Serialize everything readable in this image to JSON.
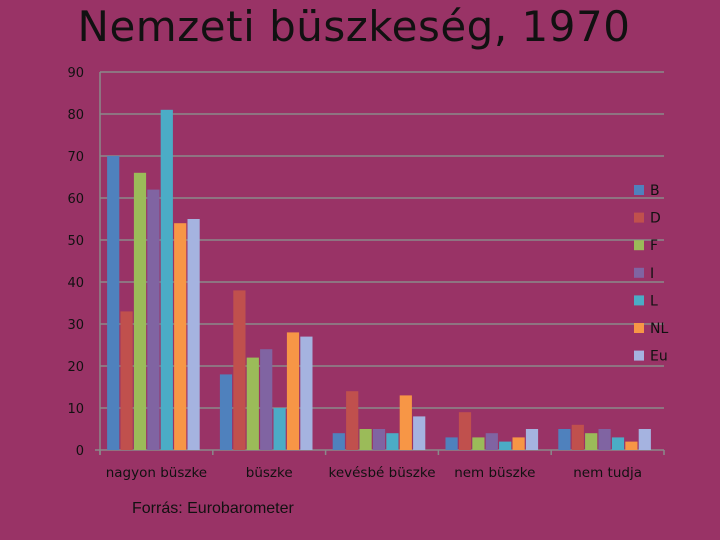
{
  "chart_data": {
    "type": "bar",
    "title": "Nemzeti büszkeség, 1970",
    "categories": [
      "nagyon büszke",
      "büszke",
      "kevésbé büszke",
      "nem büszke",
      "nem tudja"
    ],
    "ylim": [
      0,
      90
    ],
    "yticks": [
      0,
      10,
      20,
      30,
      40,
      50,
      60,
      70,
      80,
      90
    ],
    "grid": true,
    "legend_position": "right",
    "series": [
      {
        "name": "B",
        "color": "#4F81BD",
        "values": [
          70,
          18,
          4,
          3,
          5
        ]
      },
      {
        "name": "D",
        "color": "#C0504D",
        "values": [
          33,
          38,
          14,
          9,
          6
        ]
      },
      {
        "name": "F",
        "color": "#9BBB59",
        "values": [
          66,
          22,
          5,
          3,
          4
        ]
      },
      {
        "name": "I",
        "color": "#8064A2",
        "values": [
          62,
          24,
          5,
          4,
          5
        ]
      },
      {
        "name": "L",
        "color": "#4BACC6",
        "values": [
          81,
          10,
          4,
          2,
          3
        ]
      },
      {
        "name": "NL",
        "color": "#F79646",
        "values": [
          54,
          28,
          13,
          3,
          2
        ]
      },
      {
        "name": "Eu",
        "color": "#A5B3E0",
        "values": [
          55,
          27,
          8,
          5,
          5
        ]
      }
    ]
  },
  "footer": {
    "source": "Forrás: Eurobarometer"
  }
}
